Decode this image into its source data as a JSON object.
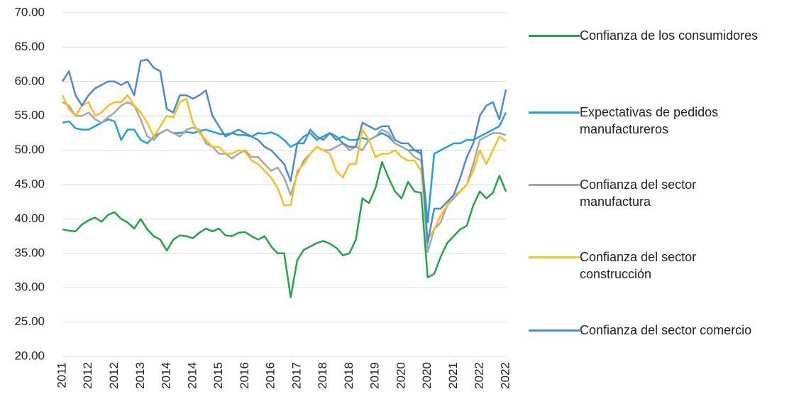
{
  "chart_data": {
    "type": "line",
    "categories": [
      "2011",
      null,
      null,
      null,
      "2012",
      null,
      null,
      null,
      "2012",
      null,
      null,
      null,
      "2013",
      null,
      null,
      null,
      "2014",
      null,
      null,
      null,
      "2014",
      null,
      null,
      null,
      "2015",
      null,
      null,
      null,
      "2016",
      null,
      null,
      null,
      "2016",
      null,
      null,
      null,
      "2017",
      null,
      null,
      null,
      "2018",
      null,
      null,
      null,
      "2018",
      null,
      null,
      null,
      "2019",
      null,
      null,
      null,
      "2020",
      null,
      null,
      null,
      "2020",
      null,
      null,
      null,
      "2021",
      null,
      null,
      null,
      "2022",
      null,
      null,
      null,
      "2022"
    ],
    "series": [
      {
        "name": "Confianza de los consumidores",
        "color": "#1ea64b",
        "values": [
          38.5,
          38.3,
          38.2,
          39.2,
          39.8,
          40.2,
          39.6,
          40.6,
          41.0,
          40.0,
          39.5,
          38.6,
          40.0,
          38.5,
          37.5,
          37.0,
          35.4,
          37.0,
          37.6,
          37.5,
          37.2,
          38.0,
          38.6,
          38.2,
          38.6,
          37.6,
          37.5,
          38.0,
          38.1,
          37.5,
          37.0,
          37.5,
          36.0,
          35.0,
          35.0,
          28.6,
          34.0,
          35.5,
          36.0,
          36.5,
          36.8,
          36.4,
          35.8,
          34.7,
          35.0,
          37.0,
          43.0,
          42.3,
          44.5,
          48.3,
          46.0,
          44.0,
          43.0,
          45.4,
          44.0,
          43.8,
          31.5,
          32.0,
          34.5,
          36.5,
          37.5,
          38.5,
          39.0,
          42.0,
          44.0,
          43.0,
          43.8,
          46.3,
          44.0
        ]
      },
      {
        "name": "Expectativas de pedidos manufactureros",
        "color": "#1aa3e0",
        "values": [
          54.0,
          54.2,
          53.2,
          53.0,
          53.0,
          53.5,
          54.0,
          54.5,
          54.2,
          51.5,
          53.0,
          53.0,
          51.5,
          51.0,
          52.0,
          52.5,
          53.0,
          52.5,
          52.5,
          52.7,
          52.5,
          52.8,
          53.0,
          52.7,
          52.4,
          52.3,
          52.5,
          52.2,
          52.2,
          52.0,
          52.5,
          52.4,
          52.6,
          52.2,
          51.5,
          50.5,
          51.0,
          52.0,
          52.5,
          51.5,
          52.0,
          52.5,
          51.5,
          52.0,
          51.5,
          51.5,
          51.8,
          51.5,
          52.0,
          52.5,
          52.0,
          51.0,
          50.5,
          50.0,
          50.0,
          49.5,
          39.5,
          49.5,
          50.0,
          50.5,
          51.0,
          51.0,
          51.5,
          51.5,
          52.0,
          52.5,
          53.0,
          53.5,
          55.5
        ]
      },
      {
        "name": "Confianza del sector manufactura",
        "color": "#a6a6a6",
        "values": [
          57.0,
          56.5,
          55.0,
          55.0,
          55.5,
          54.5,
          54.0,
          54.8,
          55.5,
          56.5,
          57.0,
          56.5,
          54.5,
          52.0,
          51.5,
          52.5,
          53.0,
          52.5,
          52.0,
          53.0,
          53.3,
          53.0,
          51.0,
          50.5,
          49.5,
          49.5,
          48.8,
          49.5,
          50.0,
          49.0,
          49.0,
          48.0,
          47.0,
          47.5,
          46.0,
          43.5,
          46.5,
          48.5,
          49.5,
          50.5,
          50.0,
          50.0,
          50.5,
          51.0,
          50.0,
          50.5,
          50.0,
          51.5,
          52.0,
          53.0,
          52.5,
          51.0,
          50.5,
          50.0,
          49.0,
          48.5,
          35.2,
          38.5,
          39.5,
          42.0,
          43.0,
          44.0,
          45.0,
          48.0,
          51.5,
          52.0,
          52.5,
          52.5,
          52.2
        ]
      },
      {
        "name": "Confianza del sector construcción",
        "color": "#fbbf1a",
        "values": [
          58.0,
          56.0,
          55.0,
          56.5,
          57.0,
          55.0,
          55.5,
          56.5,
          57.0,
          57.0,
          58.0,
          56.5,
          55.5,
          54.0,
          52.0,
          53.5,
          55.0,
          54.8,
          57.0,
          57.5,
          54.0,
          52.5,
          51.5,
          50.5,
          50.5,
          49.5,
          49.5,
          50.0,
          49.8,
          48.5,
          48.0,
          47.0,
          46.0,
          44.5,
          42.0,
          42.0,
          47.0,
          48.0,
          49.5,
          50.5,
          50.0,
          49.5,
          47.0,
          46.0,
          48.0,
          48.0,
          53.0,
          51.5,
          49.0,
          49.5,
          49.5,
          50.0,
          49.0,
          48.5,
          48.5,
          47.0,
          37.0,
          38.5,
          40.5,
          42.0,
          43.5,
          44.0,
          45.0,
          47.0,
          50.0,
          48.0,
          50.0,
          52.0,
          51.3
        ]
      },
      {
        "name": "Confianza del sector comercio",
        "color": "#4b8bd0",
        "values": [
          60.0,
          61.5,
          58.0,
          56.5,
          58.0,
          59.0,
          59.5,
          60.0,
          60.0,
          59.5,
          60.0,
          58.0,
          63.0,
          63.2,
          62.0,
          61.5,
          56.0,
          55.5,
          58.0,
          58.0,
          57.5,
          58.0,
          58.7,
          55.0,
          53.5,
          52.0,
          52.5,
          53.0,
          52.5,
          52.0,
          51.5,
          50.5,
          50.0,
          49.0,
          48.0,
          45.5,
          51.0,
          51.0,
          53.0,
          52.0,
          51.5,
          52.5,
          52.0,
          51.0,
          50.5,
          50.5,
          54.0,
          53.5,
          53.0,
          53.5,
          53.5,
          51.5,
          51.0,
          51.0,
          50.0,
          50.0,
          36.5,
          41.5,
          41.5,
          42.5,
          43.5,
          46.0,
          49.0,
          51.0,
          55.0,
          56.5,
          57.0,
          54.5,
          58.8
        ]
      }
    ],
    "ylim": [
      20,
      70
    ],
    "yticks": [
      {
        "value": 20,
        "label": "20.00"
      },
      {
        "value": 25,
        "label": "25.00"
      },
      {
        "value": 30,
        "label": "30.00"
      },
      {
        "value": 35,
        "label": "35.00"
      },
      {
        "value": 40,
        "label": "40.00"
      },
      {
        "value": 45,
        "label": "45.00"
      },
      {
        "value": 50,
        "label": "50.00"
      },
      {
        "value": 55,
        "label": "55.00"
      },
      {
        "value": 60,
        "label": "60.00"
      },
      {
        "value": 65,
        "label": "65.00"
      },
      {
        "value": 70,
        "label": "70.00"
      }
    ],
    "grid": true
  }
}
